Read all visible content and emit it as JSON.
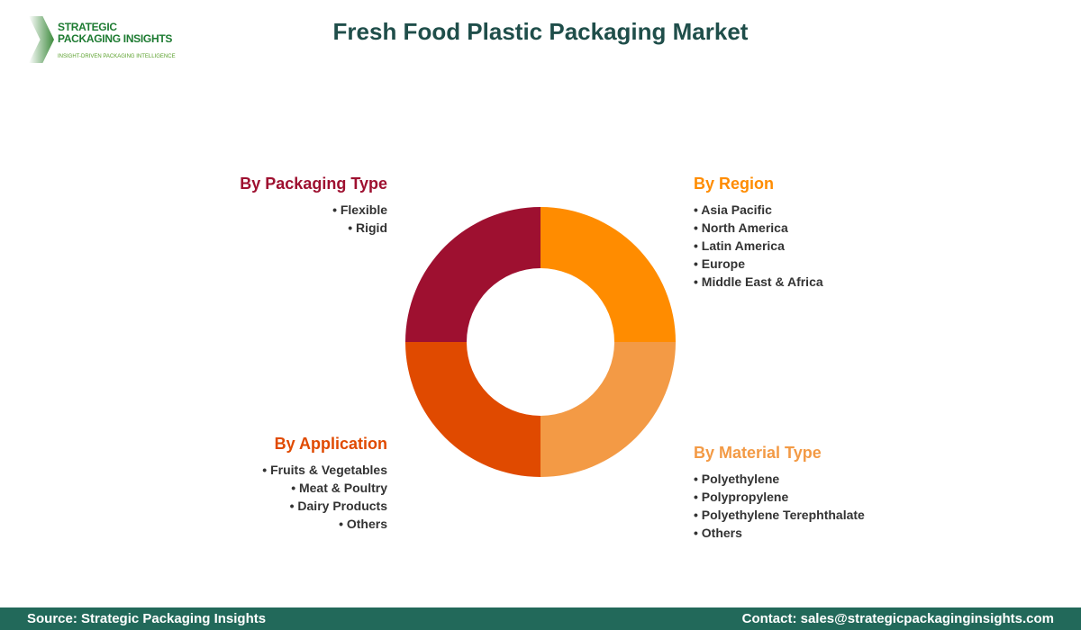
{
  "header": {
    "title": "Fresh Food Plastic Packaging Market"
  },
  "logo": {
    "line1": "STRATEGIC",
    "line2": "PACKAGING INSIGHTS",
    "tagline": "INSIGHT-DRIVEN PACKAGING INTELLIGENCE"
  },
  "segments": [
    {
      "title": "By Packaging Type",
      "color": "#9e1030",
      "items": [
        "Flexible",
        "Rigid"
      ]
    },
    {
      "title": "By Region",
      "color": "#ff8c00",
      "items": [
        "Asia Pacific",
        "North America",
        "Latin America",
        "Europe",
        "Middle East & Africa"
      ]
    },
    {
      "title": "By Application",
      "color": "#e04a00",
      "items": [
        "Fruits & Vegetables",
        "Meat & Poultry",
        "Dairy Products",
        "Others"
      ]
    },
    {
      "title": "By Material Type",
      "color": "#f39a45",
      "items": [
        "Polyethylene",
        "Polypropylene",
        "Polyethylene Terephthalate",
        "Others"
      ]
    }
  ],
  "donut": {
    "order": [
      "By Region",
      "By Material Type",
      "By Application",
      "By Packaging Type"
    ],
    "shares": [
      25,
      25,
      25,
      25
    ],
    "colors": [
      "#ff8c00",
      "#f39a45",
      "#e04a00",
      "#9e1030"
    ]
  },
  "footer": {
    "source": "Source: Strategic Packaging Insights",
    "contact": "Contact: sales@strategicpackaginginsights.com"
  }
}
